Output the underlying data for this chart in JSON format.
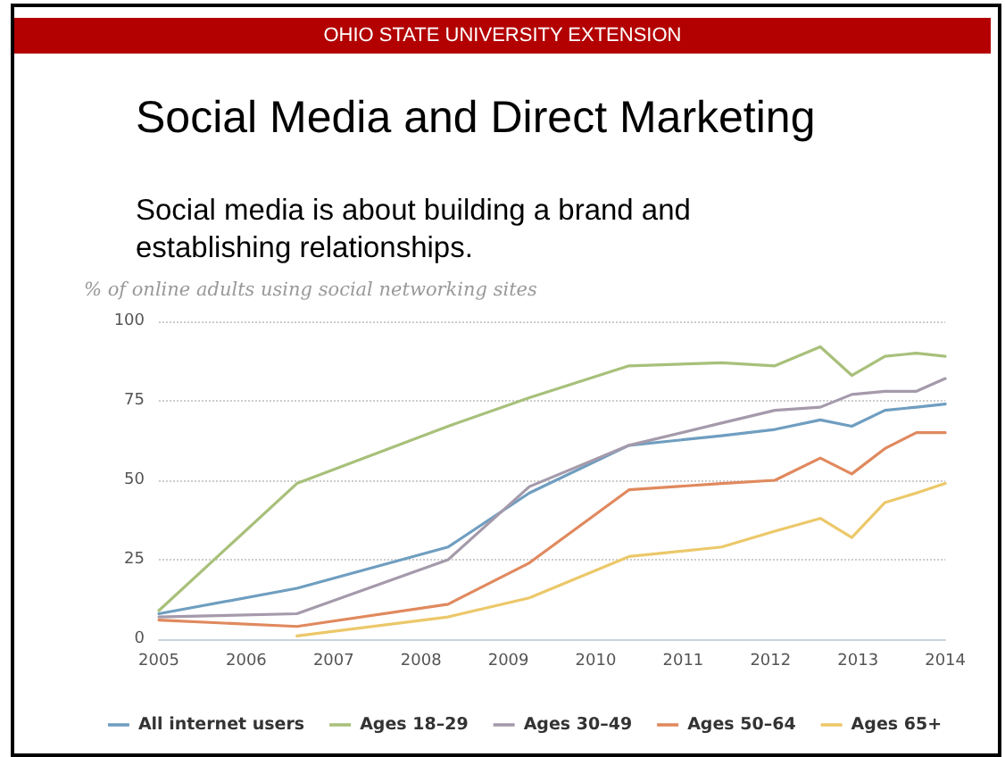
{
  "chart_data": {
    "type": "line",
    "annotations": [
      "OHIO STATE UNIVERSITY EXTENSION"
    ],
    "title": "Social Media and Direct Marketing",
    "subtitle": "Social media is about building a brand and establishing relationships.",
    "ylabel": "% of online adults using social networking sites",
    "x": [
      2005,
      2006.58,
      2008.31,
      2009.24,
      2010.38,
      2011.44,
      2012.05,
      2012.57,
      2012.93,
      2013.31,
      2013.67,
      2014
    ],
    "series": [
      {
        "name": "All internet users",
        "color": "#6f9ec0",
        "values": [
          8,
          16,
          29,
          46,
          61,
          64,
          66,
          69,
          67,
          72,
          73,
          74
        ]
      },
      {
        "name": "Ages 18–29",
        "color": "#a8c07a",
        "values": [
          9,
          49,
          67,
          76,
          86,
          87,
          86,
          92,
          83,
          89,
          90,
          89
        ]
      },
      {
        "name": "Ages 30–49",
        "color": "#a59aab",
        "values": [
          7,
          8,
          25,
          48,
          61,
          68,
          72,
          73,
          77,
          78,
          78,
          82
        ]
      },
      {
        "name": "Ages 50–64",
        "color": "#e0895e",
        "values": [
          6,
          4,
          11,
          24,
          47,
          49,
          50,
          57,
          52,
          60,
          65,
          65
        ]
      },
      {
        "name": "Ages 65+",
        "color": "#ecc86a",
        "values": [
          null,
          1,
          7,
          13,
          26,
          29,
          34,
          38,
          32,
          43,
          46,
          49
        ]
      }
    ],
    "xlim": [
      2005,
      2014
    ],
    "xticks": [
      2005,
      2006,
      2007,
      2008,
      2009,
      2010,
      2011,
      2012,
      2013,
      2014
    ],
    "ylim": [
      0,
      100
    ],
    "yticks": [
      0,
      25,
      50,
      75,
      100
    ],
    "grid": "y",
    "legend": "bottom",
    "marker": "none",
    "line_style": "solid"
  }
}
